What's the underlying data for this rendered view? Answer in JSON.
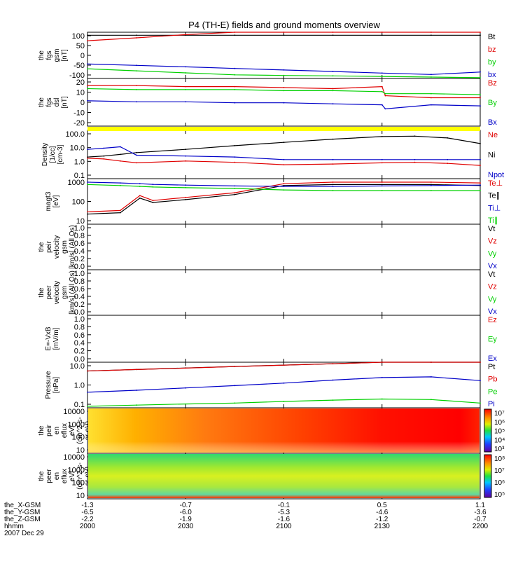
{
  "title": "P4 (TH-E) fields and ground moments overview",
  "colors": {
    "black": "#000000",
    "red": "#e00000",
    "green": "#00d000",
    "blue": "#0000c8",
    "yellow": "#ffff00"
  },
  "x_time_labels": [
    "2000",
    "2030",
    "2100",
    "2130",
    "2200"
  ],
  "ephemeris": {
    "row_labels": [
      "the_X-GSM",
      "the_Y-GSM",
      "the_Z-GSM",
      "hhmm",
      "2007 Dec 29"
    ],
    "columns": [
      [
        "-1.3",
        "-6.5",
        "-2.2"
      ],
      [
        "-0.7",
        "-6.0",
        "-1.9"
      ],
      [
        "-0.1",
        "-5.3",
        "-1.6"
      ],
      [
        "0.5",
        "-4.6",
        "-1.2"
      ],
      [
        "1.1",
        "-3.6",
        "-0.7"
      ]
    ]
  },
  "panels": [
    {
      "id": "fgs-gsm",
      "ylabel": [
        "the",
        "fgs",
        "gsm",
        "[nT]"
      ],
      "ytick_labels": [
        "100",
        "50",
        "0",
        "-50",
        "-100"
      ],
      "legend": [
        {
          "text": "Bt",
          "color": "black"
        },
        {
          "text": "bz",
          "color": "red"
        },
        {
          "text": "by",
          "color": "green"
        },
        {
          "text": "bx",
          "color": "blue"
        }
      ]
    },
    {
      "id": "fgs-dsl",
      "ylabel": [
        "the",
        "fgs",
        "dsl",
        "[nT]"
      ],
      "ytick_labels": [
        "20",
        "10",
        "0",
        "-10",
        "-20"
      ],
      "legend": [
        {
          "text": "Bz",
          "color": "red"
        },
        {
          "text": "By",
          "color": "green"
        },
        {
          "text": "Bx",
          "color": "blue"
        }
      ]
    },
    {
      "id": "density",
      "ylabel": [
        "Density",
        "[1/cc]",
        "[cm-3]"
      ],
      "ytick_labels": [
        "100.0",
        "10.0",
        "1.0",
        "0.1"
      ],
      "legend": [
        {
          "text": "Ne",
          "color": "red"
        },
        {
          "text": "Ni",
          "color": "black"
        },
        {
          "text": "Npot",
          "color": "blue"
        }
      ]
    },
    {
      "id": "temperature",
      "ylabel": [
        "magt3",
        "[eV]"
      ],
      "ytick_labels": [
        "1000",
        "100",
        "10"
      ],
      "legend": [
        {
          "text": "Te⊥",
          "color": "red"
        },
        {
          "text": "Te∥",
          "color": "black"
        },
        {
          "text": "Ti⊥",
          "color": "blue"
        },
        {
          "text": "Ti∥",
          "color": "green"
        }
      ]
    },
    {
      "id": "peir-velocity",
      "ylabel": [
        "the",
        "peir",
        "velocity",
        "gsm",
        "[km/s] (All Qs)"
      ],
      "ytick_labels": [
        "1.0",
        "0.8",
        "0.6",
        "0.4",
        "0.2",
        "0.0"
      ],
      "legend": [
        {
          "text": "Vt",
          "color": "black"
        },
        {
          "text": "Vz",
          "color": "red"
        },
        {
          "text": "Vy",
          "color": "green"
        },
        {
          "text": "Vx",
          "color": "blue"
        }
      ]
    },
    {
      "id": "peer-velocity",
      "ylabel": [
        "the",
        "peer",
        "velocity",
        "gsm",
        "[km/s] (All Qs)"
      ],
      "ytick_labels": [
        "1.0",
        "0.8",
        "0.6",
        "0.4",
        "0.2",
        "0.0"
      ],
      "legend": [
        {
          "text": "Vt",
          "color": "black"
        },
        {
          "text": "Vz",
          "color": "red"
        },
        {
          "text": "Vy",
          "color": "green"
        },
        {
          "text": "Vx",
          "color": "blue"
        }
      ]
    },
    {
      "id": "efield",
      "ylabel": [
        "E=-VxB",
        "[mV/m]"
      ],
      "ytick_labels": [
        "1.0",
        "0.8",
        "0.6",
        "0.4",
        "0.2",
        "0.0"
      ],
      "legend": [
        {
          "text": "Ez",
          "color": "red"
        },
        {
          "text": "Ey",
          "color": "green"
        },
        {
          "text": "Ex",
          "color": "blue"
        }
      ]
    },
    {
      "id": "pressure",
      "ylabel": [
        "Pressure",
        "[nPa]"
      ],
      "ytick_labels": [
        "10.0",
        "1.0",
        "0.1"
      ],
      "legend": [
        {
          "text": "Pt",
          "color": "black"
        },
        {
          "text": "Pb",
          "color": "red"
        },
        {
          "text": "Pe",
          "color": "green"
        },
        {
          "text": "Pi",
          "color": "blue"
        }
      ]
    },
    {
      "id": "peir-eflux",
      "ylabel": [
        "the",
        "peir",
        "en",
        "eflux",
        "eV/",
        "(cm^2-s-",
        "sr-eV)"
      ],
      "ytick_labels": [
        "10000",
        "1000",
        "100",
        "10"
      ],
      "colorbar_labels": [
        "10⁷",
        "10⁶",
        "10⁵",
        "10⁴",
        "10³"
      ]
    },
    {
      "id": "peer-eflux",
      "ylabel": [
        "the",
        "peer",
        "en",
        "eflux",
        "eV/",
        "(cm^2-s-",
        "sr-eV)"
      ],
      "ytick_labels": [
        "10000",
        "1000",
        "100",
        "10"
      ],
      "colorbar_labels": [
        "10⁸",
        "10⁷",
        "10⁶",
        "10⁵"
      ]
    }
  ],
  "chart_data": [
    {
      "type": "line",
      "panel": "fgs-gsm",
      "ylim": [
        -120,
        110
      ],
      "x": [
        2000,
        2015,
        2030,
        2045,
        2100,
        2115,
        2130,
        2145,
        2200
      ],
      "series": [
        {
          "name": "Bt",
          "values": [
            95,
            95,
            95,
            95,
            95,
            95,
            95,
            95,
            95
          ],
          "color": "black"
        },
        {
          "name": "bz",
          "values": [
            68,
            82,
            98,
            110,
            110,
            110,
            110,
            110,
            110
          ],
          "color": "red"
        },
        {
          "name": "by",
          "values": [
            -72,
            -82,
            -92,
            -102,
            -105,
            -107,
            -110,
            -113,
            -116
          ],
          "color": "green"
        },
        {
          "name": "bx",
          "values": [
            -48,
            -55,
            -62,
            -70,
            -78,
            -85,
            -93,
            -100,
            -88
          ],
          "color": "blue"
        }
      ]
    },
    {
      "type": "line",
      "panel": "fgs-dsl",
      "ylim": [
        -25,
        22
      ],
      "x": [
        2000,
        2015,
        2030,
        2045,
        2100,
        2115,
        2130,
        2131,
        2145,
        2200
      ],
      "series": [
        {
          "name": "Bz",
          "values": [
            15,
            15,
            14,
            14,
            13,
            12,
            14,
            5,
            3,
            3
          ],
          "color": "red"
        },
        {
          "name": "By",
          "values": [
            12,
            11,
            11,
            11,
            10,
            10,
            9,
            7,
            7,
            6
          ],
          "color": "green"
        },
        {
          "name": "Bx",
          "values": [
            0,
            -1,
            -1,
            -2,
            -2,
            -3,
            -4,
            -8,
            -4,
            -5
          ],
          "color": "blue"
        }
      ]
    },
    {
      "type": "line",
      "panel": "density",
      "ylog": true,
      "ylim": [
        0.1,
        200
      ],
      "x": [
        2000,
        2005,
        2010,
        2015,
        2030,
        2045,
        2100,
        2115,
        2130,
        2140,
        2150,
        2200
      ],
      "series": [
        {
          "name": "Ne",
          "values": [
            2.5,
            2.2,
            1.6,
            1.2,
            1.6,
            1.3,
            0.9,
            1.0,
            1.2,
            1.3,
            1.1,
            0.8
          ],
          "color": "red"
        },
        {
          "name": "Ni",
          "values": [
            3.0,
            3.5,
            4.5,
            6.0,
            10,
            18,
            30,
            50,
            75,
            80,
            60,
            25
          ],
          "color": "black"
        },
        {
          "name": "Npot",
          "values": [
            10,
            12,
            15,
            4.0,
            3.5,
            3.0,
            2.0,
            2.0,
            2.0,
            2.0,
            2.0,
            2.0
          ],
          "color": "blue"
        }
      ]
    },
    {
      "type": "line",
      "panel": "temperature",
      "ylog": true,
      "ylim": [
        10,
        1000
      ],
      "x": [
        2000,
        2010,
        2016,
        2020,
        2030,
        2045,
        2100,
        2115,
        2130,
        2145,
        2200
      ],
      "series": [
        {
          "name": "Te⊥",
          "values": [
            35,
            40,
            180,
            110,
            150,
            240,
            600,
            700,
            700,
            700,
            650
          ],
          "color": "red"
        },
        {
          "name": "Te∥",
          "values": [
            28,
            32,
            140,
            90,
            120,
            200,
            500,
            550,
            550,
            550,
            500
          ],
          "color": "black"
        },
        {
          "name": "Ti⊥",
          "values": [
            700,
            650,
            600,
            560,
            520,
            480,
            460,
            460,
            480,
            500,
            520
          ],
          "color": "blue"
        },
        {
          "name": "Ti∥",
          "values": [
            550,
            500,
            460,
            430,
            400,
            370,
            320,
            300,
            300,
            300,
            300
          ],
          "color": "green"
        }
      ]
    },
    {
      "type": "line",
      "panel": "pressure",
      "ylog": true,
      "ylim": [
        0.05,
        15
      ],
      "x": [
        2000,
        2015,
        2030,
        2045,
        2100,
        2115,
        2130,
        2145,
        2200
      ],
      "series": [
        {
          "name": "Pt",
          "values": [
            5.0,
            6.0,
            7.3,
            8.8,
            10.5,
            12.5,
            15,
            15,
            15
          ],
          "color": "black"
        },
        {
          "name": "Pb",
          "values": [
            5.0,
            6.0,
            7.2,
            8.7,
            10.4,
            12.4,
            15,
            15,
            15
          ],
          "color": "red"
        },
        {
          "name": "Pe",
          "values": [
            0.06,
            0.07,
            0.08,
            0.09,
            0.11,
            0.13,
            0.15,
            0.14,
            0.09
          ],
          "color": "green"
        },
        {
          "name": "Pi",
          "values": [
            0.35,
            0.45,
            0.6,
            0.8,
            1.1,
            1.6,
            2.2,
            2.4,
            1.5
          ],
          "color": "blue"
        }
      ]
    }
  ]
}
